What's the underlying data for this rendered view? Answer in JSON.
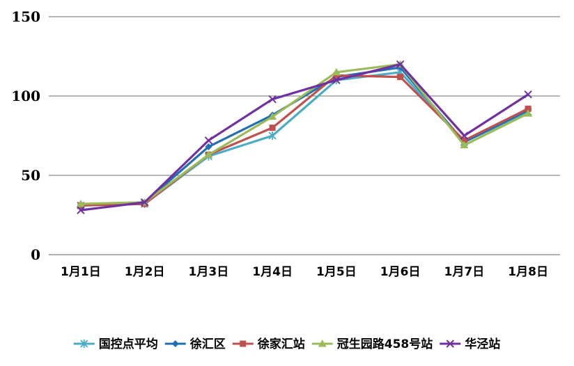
{
  "chart_data": {
    "type": "line",
    "categories": [
      "1月1日",
      "1月2日",
      "1月3日",
      "1月4日",
      "1月5日",
      "1月6日",
      "1月7日",
      "1月8日"
    ],
    "ylim": [
      0,
      150
    ],
    "yticks": [
      0,
      50,
      100,
      150
    ],
    "grid": true,
    "legend_position": "bottom",
    "series": [
      {
        "name": "国控点平均",
        "color": "#4BACC6",
        "marker": "star",
        "values": [
          31,
          32,
          62,
          75,
          110,
          115,
          71,
          90
        ]
      },
      {
        "name": "徐汇区",
        "color": "#1F6FB5",
        "marker": "diamond",
        "values": [
          31,
          33,
          68,
          88,
          112,
          118,
          71,
          91
        ]
      },
      {
        "name": "徐家汇站",
        "color": "#C0504D",
        "marker": "square",
        "values": [
          31,
          32,
          63,
          80,
          113,
          112,
          72,
          92
        ]
      },
      {
        "name": "冠生园路458号站",
        "color": "#9BBB59",
        "marker": "triangle",
        "values": [
          32,
          33,
          63,
          87,
          115,
          120,
          69,
          89
        ]
      },
      {
        "name": "华泾站",
        "color": "#7030A0",
        "marker": "x",
        "values": [
          28,
          33,
          72,
          98,
          110,
          120,
          75,
          101
        ]
      }
    ]
  }
}
